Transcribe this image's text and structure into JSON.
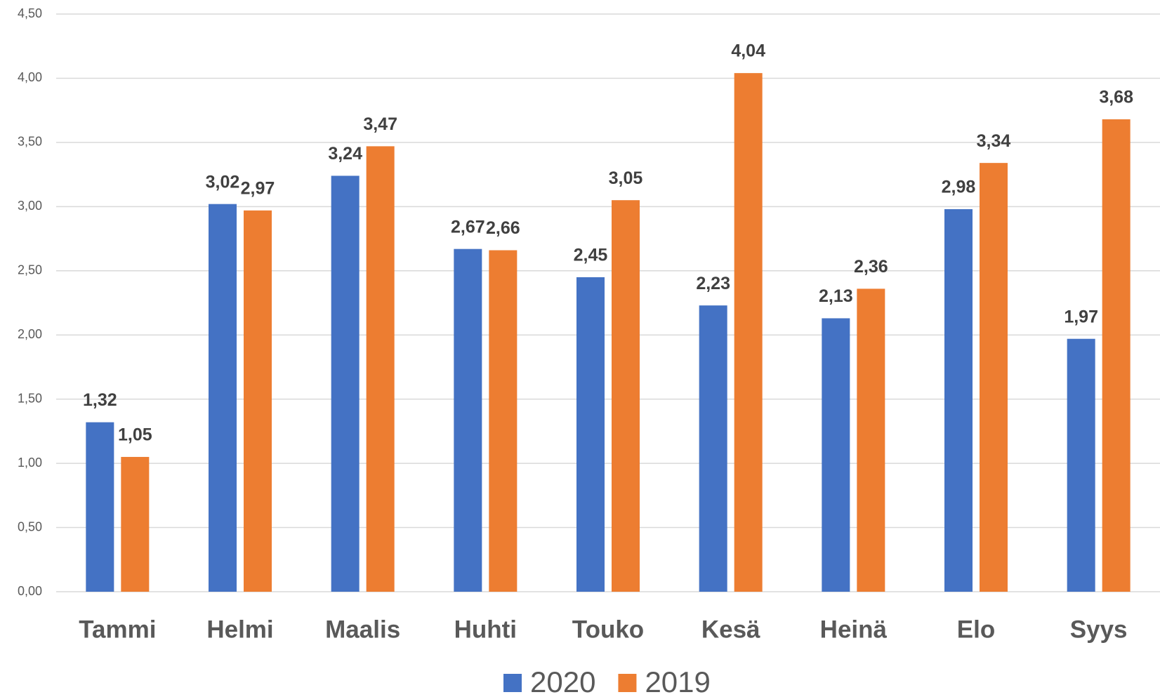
{
  "chart_data": {
    "type": "bar",
    "categories": [
      "Tammi",
      "Helmi",
      "Maalis",
      "Huhti",
      "Touko",
      "Kesä",
      "Heinä",
      "Elo",
      "Syys"
    ],
    "series": [
      {
        "name": "2020",
        "color": "#4472c4",
        "values": [
          1.32,
          3.02,
          3.24,
          2.67,
          2.45,
          2.23,
          2.13,
          2.98,
          1.97
        ],
        "value_labels": [
          "1,32",
          "3,02",
          "3,24",
          "2,67",
          "2,45",
          "2,23",
          "2,13",
          "2,98",
          "1,97"
        ]
      },
      {
        "name": "2019",
        "color": "#ed7d31",
        "values": [
          1.05,
          2.97,
          3.47,
          2.66,
          3.05,
          4.04,
          2.36,
          3.34,
          3.68
        ],
        "value_labels": [
          "1,05",
          "2,97",
          "3,47",
          "2,66",
          "3,05",
          "4,04",
          "2,36",
          "3,34",
          "3,68"
        ]
      }
    ],
    "ylim": [
      0,
      4.5
    ],
    "yticks": [
      {
        "value": 0,
        "label": "0,00"
      },
      {
        "value": 0.5,
        "label": "0,50"
      },
      {
        "value": 1,
        "label": "1,00"
      },
      {
        "value": 1.5,
        "label": "1,50"
      },
      {
        "value": 2,
        "label": "2,00"
      },
      {
        "value": 2.5,
        "label": "2,50"
      },
      {
        "value": 3,
        "label": "3,00"
      },
      {
        "value": 3.5,
        "label": "3,50"
      },
      {
        "value": 4,
        "label": "4,00"
      },
      {
        "value": 4.5,
        "label": "4,50"
      }
    ],
    "grid": true,
    "legend": "bottom"
  }
}
